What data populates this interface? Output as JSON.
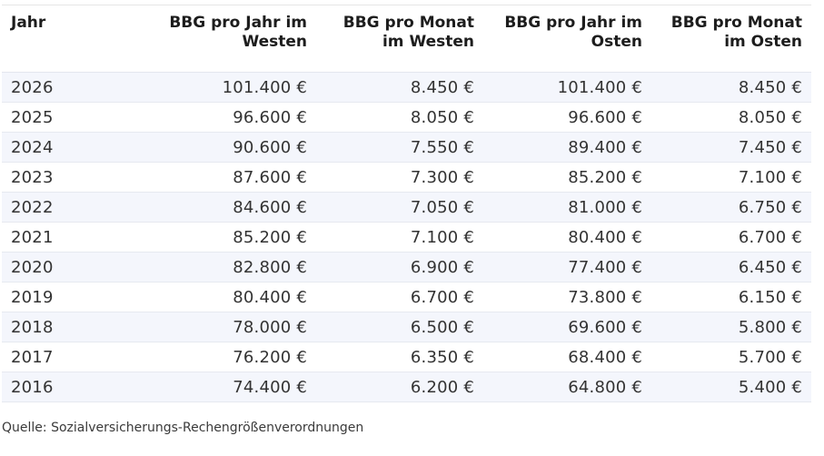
{
  "table": {
    "headers": {
      "year": "Jahr",
      "west_year_line1": "BBG pro Jahr im",
      "west_year_line2": "Westen",
      "west_month_line1": "BBG pro Monat",
      "west_month_line2": "im Westen",
      "east_year_line1": "BBG pro Jahr im",
      "east_year_line2": "Osten",
      "east_month_line1": "BBG pro Monat",
      "east_month_line2": "im Osten"
    },
    "rows": [
      {
        "year": "2026",
        "west_year": "101.400 €",
        "west_month": "8.450 €",
        "east_year": "101.400 €",
        "east_month": "8.450 €"
      },
      {
        "year": "2025",
        "west_year": "96.600 €",
        "west_month": "8.050 €",
        "east_year": "96.600 €",
        "east_month": "8.050 €"
      },
      {
        "year": "2024",
        "west_year": "90.600 €",
        "west_month": "7.550 €",
        "east_year": "89.400 €",
        "east_month": "7.450 €"
      },
      {
        "year": "2023",
        "west_year": "87.600 €",
        "west_month": "7.300 €",
        "east_year": "85.200 €",
        "east_month": "7.100 €"
      },
      {
        "year": "2022",
        "west_year": "84.600 €",
        "west_month": "7.050 €",
        "east_year": "81.000 €",
        "east_month": "6.750 €"
      },
      {
        "year": "2021",
        "west_year": "85.200 €",
        "west_month": "7.100 €",
        "east_year": "80.400 €",
        "east_month": "6.700 €"
      },
      {
        "year": "2020",
        "west_year": "82.800 €",
        "west_month": "6.900 €",
        "east_year": "77.400 €",
        "east_month": "6.450 €"
      },
      {
        "year": "2019",
        "west_year": "80.400 €",
        "west_month": "6.700 €",
        "east_year": "73.800 €",
        "east_month": "6.150 €"
      },
      {
        "year": "2018",
        "west_year": "78.000 €",
        "west_month": "6.500 €",
        "east_year": "69.600 €",
        "east_month": "5.800 €"
      },
      {
        "year": "2017",
        "west_year": "76.200 €",
        "west_month": "6.350 €",
        "east_year": "68.400 €",
        "east_month": "5.700 €"
      },
      {
        "year": "2016",
        "west_year": "74.400 €",
        "west_month": "6.200 €",
        "east_year": "64.800 €",
        "east_month": "5.400 €"
      }
    ]
  },
  "source": "Quelle: Sozialversicherungs-Rechengrößenverordnungen",
  "colors": {
    "row_stripe": "#f4f6fc",
    "text": "#333333",
    "header_text": "#1d1d1d"
  }
}
